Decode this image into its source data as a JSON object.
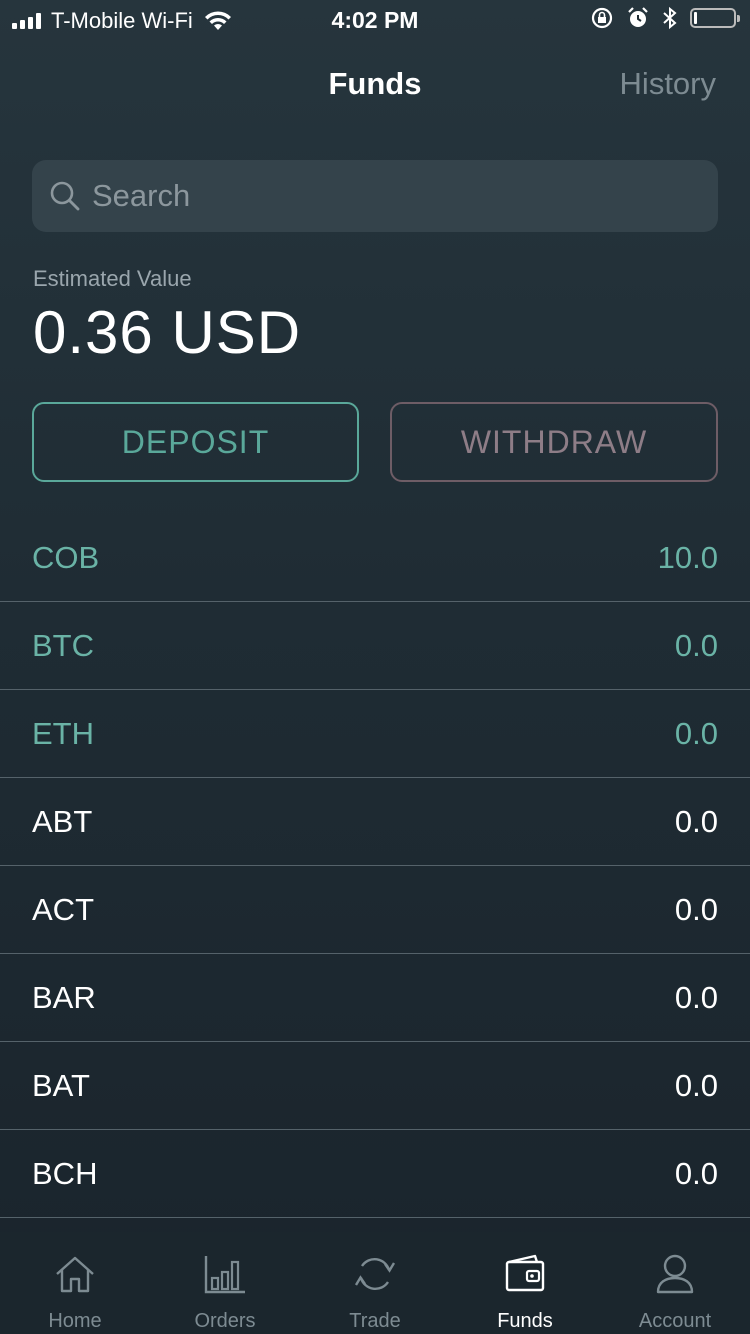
{
  "status_bar": {
    "carrier": "T-Mobile Wi-Fi",
    "time": "4:02 PM",
    "battery_level": 0.08
  },
  "nav": {
    "title": "Funds",
    "history_label": "History"
  },
  "search": {
    "placeholder": "Search"
  },
  "estimated": {
    "label": "Estimated Value",
    "value": "0.36 USD"
  },
  "actions": {
    "deposit_label": "DEPOSIT",
    "withdraw_label": "WITHDRAW"
  },
  "funds": [
    {
      "symbol": "COB",
      "amount": "10.0",
      "highlight": true
    },
    {
      "symbol": "BTC",
      "amount": "0.0",
      "highlight": true
    },
    {
      "symbol": "ETH",
      "amount": "0.0",
      "highlight": true
    },
    {
      "symbol": "ABT",
      "amount": "0.0",
      "highlight": false
    },
    {
      "symbol": "ACT",
      "amount": "0.0",
      "highlight": false
    },
    {
      "symbol": "BAR",
      "amount": "0.0",
      "highlight": false
    },
    {
      "symbol": "BAT",
      "amount": "0.0",
      "highlight": false
    },
    {
      "symbol": "BCH",
      "amount": "0.0",
      "highlight": false
    }
  ],
  "tabs": [
    {
      "label": "Home",
      "icon": "home-icon"
    },
    {
      "label": "Orders",
      "icon": "bar-chart-icon"
    },
    {
      "label": "Trade",
      "icon": "refresh-icon"
    },
    {
      "label": "Funds",
      "icon": "wallet-icon",
      "active": true
    },
    {
      "label": "Account",
      "icon": "user-icon"
    }
  ],
  "colors": {
    "accent_teal": "#5aa89a",
    "withdraw_border": "#6e5d66",
    "background": "#1f2c34"
  }
}
